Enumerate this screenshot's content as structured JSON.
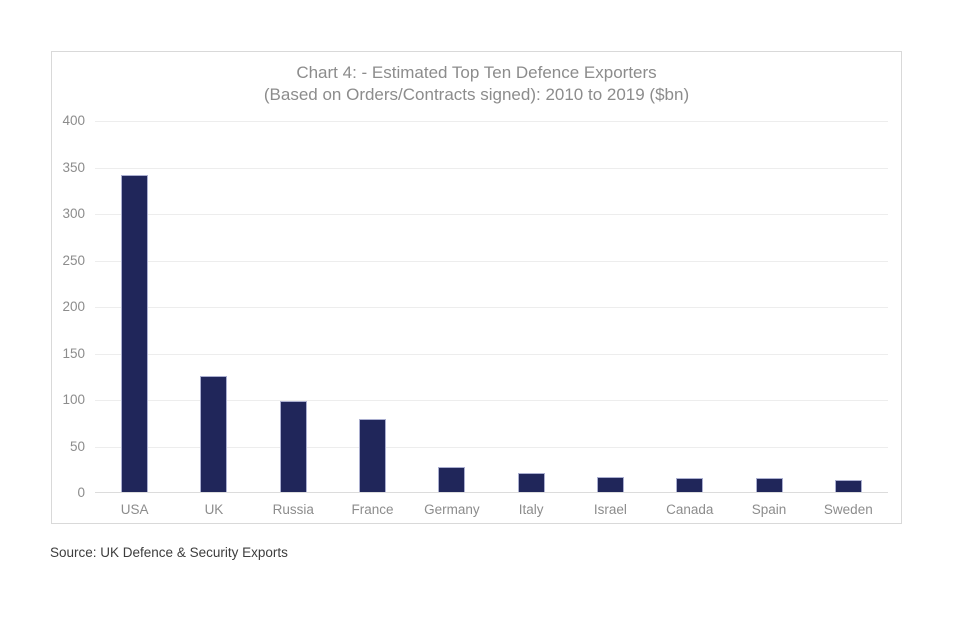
{
  "chart": {
    "title_line1": "Chart 4: - Estimated Top Ten Defence Exporters",
    "title_line2": "(Based on Orders/Contracts signed): 2010 to 2019 ($bn)",
    "source": "Source: UK Defence & Security Exports",
    "colors": {
      "bar_fill": "#20265a",
      "bar_border": "#abafd0",
      "gridline": "#ededed",
      "axis_line": "#dcdcdc",
      "frame_border": "#d9d9d9",
      "label_text": "#8c8c8c",
      "source_text": "#3d3d3d",
      "background": "#ffffff"
    }
  },
  "chart_data": {
    "type": "bar",
    "categories": [
      "USA",
      "UK",
      "Russia",
      "France",
      "Germany",
      "Italy",
      "Israel",
      "Canada",
      "Spain",
      "Sweden"
    ],
    "values": [
      341,
      125,
      98,
      78,
      27,
      20,
      16,
      15,
      15,
      13
    ],
    "title": "Chart 4: - Estimated Top Ten Defence Exporters (Based on Orders/Contracts signed): 2010 to 2019 ($bn)",
    "xlabel": "",
    "ylabel": "",
    "ylim": [
      0,
      400
    ],
    "ytick_step": 50,
    "yticks": [
      0,
      50,
      100,
      150,
      200,
      250,
      300,
      350,
      400
    ],
    "grid": true,
    "legend": false,
    "bar_color": "#20265a"
  }
}
